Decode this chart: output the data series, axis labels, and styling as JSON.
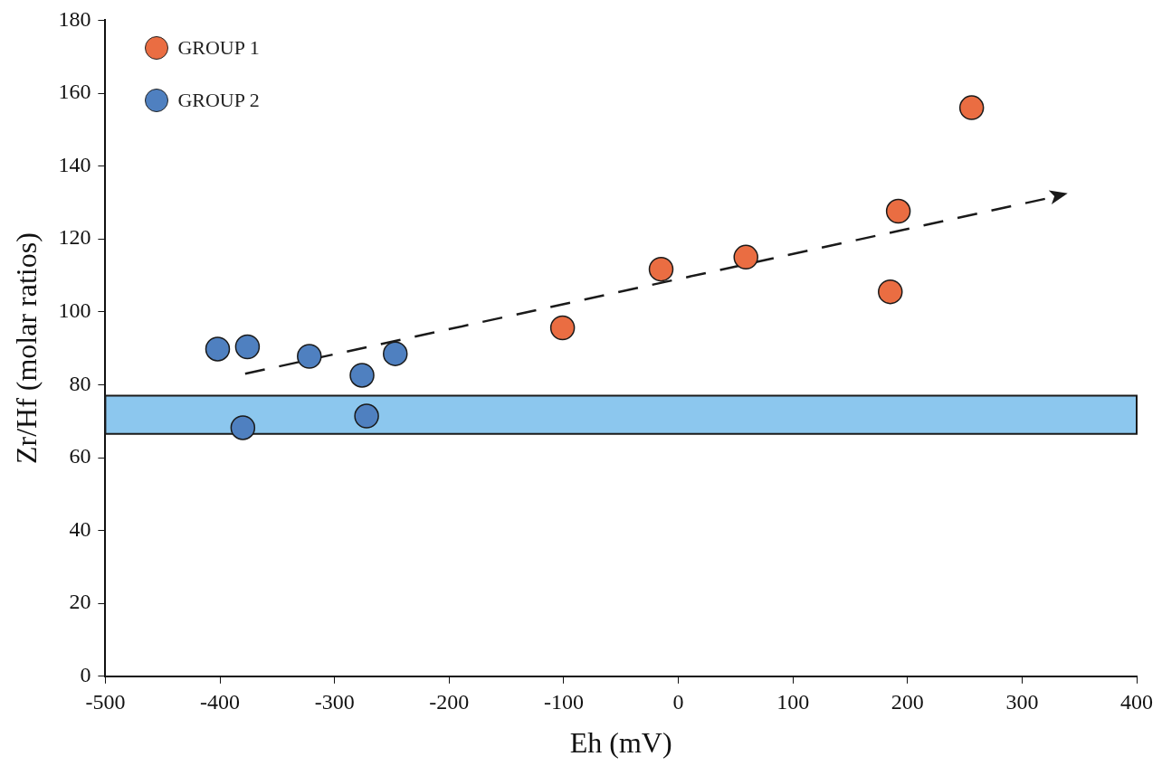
{
  "chart_data": {
    "type": "scatter",
    "xlabel": "Eh (mV)",
    "ylabel": "Zr/Hf (molar ratios)",
    "xlim": [
      -500,
      400
    ],
    "xticks": [
      -500,
      -400,
      -300,
      -200,
      -100,
      0,
      100,
      200,
      300,
      400
    ],
    "ylim": [
      0,
      180
    ],
    "yticks": [
      0,
      20,
      40,
      60,
      80,
      100,
      120,
      140,
      160,
      180
    ],
    "grid": false,
    "legend": "top left",
    "series": [
      {
        "name": "GROUP 1",
        "color": "#ea6d42",
        "marker": "circle",
        "x": [
          256,
          192,
          185,
          59,
          -15,
          -101
        ],
        "values": [
          156,
          127.6,
          105.5,
          115,
          111.7,
          95.6
        ]
      },
      {
        "name": "GROUP 2",
        "color": "#4f80c0",
        "marker": "circle",
        "x": [
          -402,
          -376,
          -322,
          -276,
          -247,
          -380,
          -272
        ],
        "values": [
          89.8,
          90.4,
          87.8,
          82.6,
          88.5,
          68.2,
          71.4
        ]
      },
      {
        "type": "line",
        "color": "#1a1a1a",
        "line_style": "dashed",
        "marker": "none",
        "x": [
          -378,
          320
        ],
        "values": [
          83,
          131
        ]
      }
    ],
    "bands": [
      {
        "axis": "y",
        "from": 66.5,
        "to": 77,
        "color": "#8cc7ee"
      }
    ]
  }
}
